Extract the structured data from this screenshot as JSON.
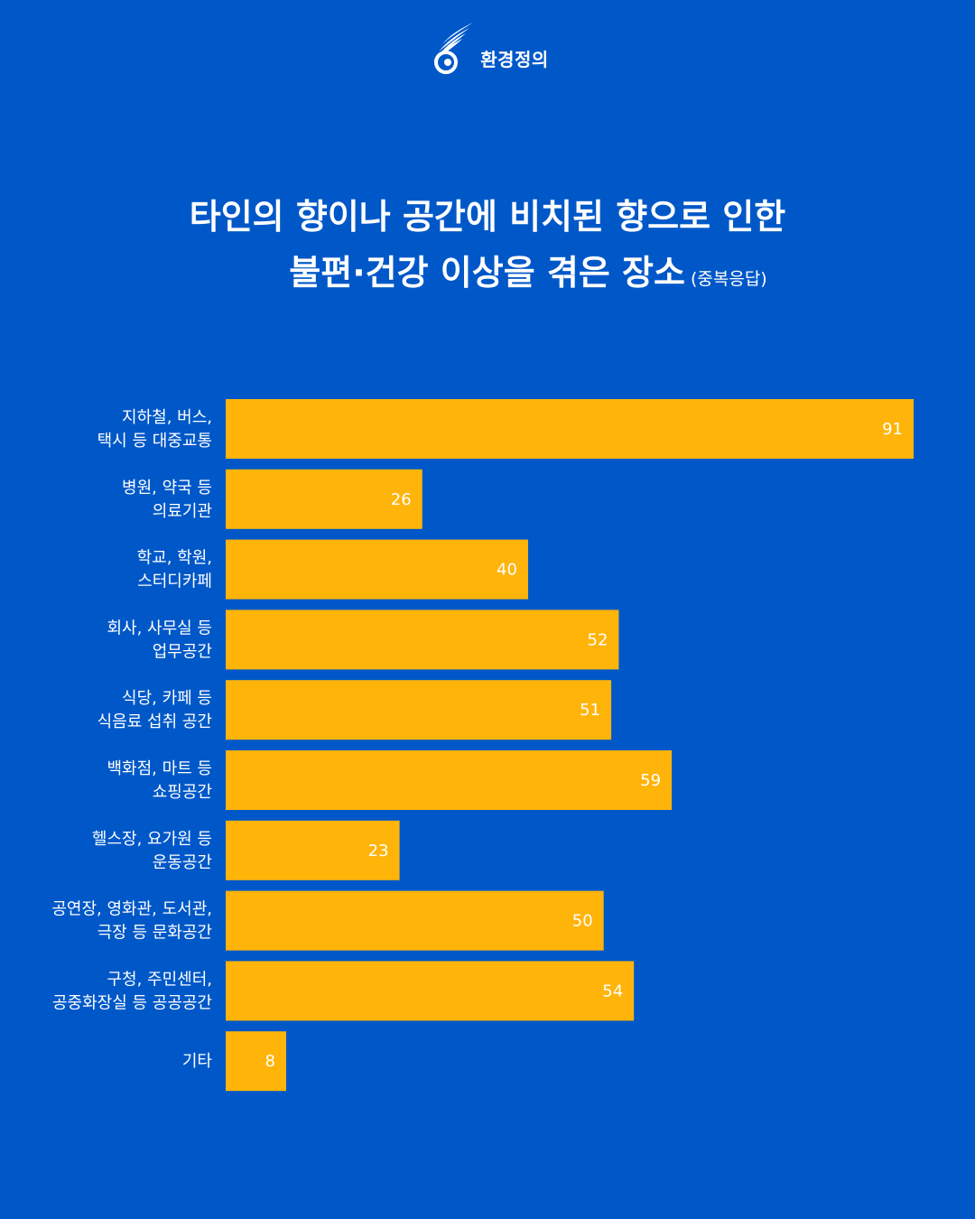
{
  "logo": {
    "text": "환경정의",
    "icon": "bird-swirl-logo-icon"
  },
  "title": {
    "line1": "타인의 향이나 공간에 비치된 향으로 인한",
    "line2": "불편·건강 이상을 겪은 장소",
    "note": "(중복응답)"
  },
  "colors": {
    "background": "#0058c8",
    "bar": "#ffb40a",
    "text": "#ffffff"
  },
  "chart_data": {
    "type": "bar",
    "orientation": "horizontal",
    "categories": [
      [
        "지하철, 버스,",
        "택시 등 대중교통"
      ],
      [
        "병원, 약국 등",
        "의료기관"
      ],
      [
        "학교, 학원,",
        "스터디카페"
      ],
      [
        "회사, 사무실 등",
        "업무공간"
      ],
      [
        "식당, 카페 등",
        "식음료 섭취 공간"
      ],
      [
        "백화점, 마트 등",
        "쇼핑공간"
      ],
      [
        "헬스장, 요가원 등",
        "운동공간"
      ],
      [
        "공연장, 영화관, 도서관,",
        "극장 등 문화공간"
      ],
      [
        "구청, 주민센터,",
        "공중화장실 등 공공공간"
      ],
      [
        "기타"
      ]
    ],
    "values": [
      91,
      26,
      40,
      52,
      51,
      59,
      23,
      50,
      54,
      8
    ],
    "xlim": [
      0,
      91
    ],
    "grid": false,
    "data_labels": true
  }
}
